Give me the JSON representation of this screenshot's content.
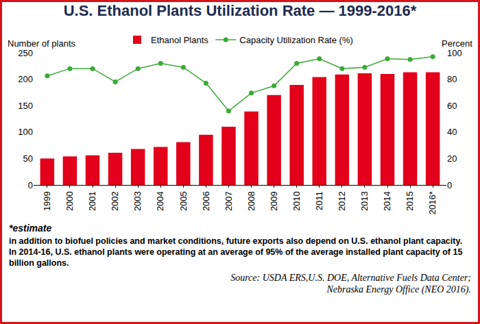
{
  "chart_data": {
    "type": "bar",
    "title": "U.S. Ethanol Plants Utilization Rate — 1999-2016*",
    "ylabel": "Number of plants",
    "y2label": "Percent",
    "categories": [
      "1999",
      "2000",
      "2001",
      "2002",
      "2003",
      "2004",
      "2005",
      "2006",
      "2007",
      "2008",
      "2009",
      "2010",
      "2011",
      "2012",
      "2013",
      "2014",
      "2015",
      "2016*"
    ],
    "series": [
      {
        "name": "Ethanol Plants",
        "type": "bar",
        "color": "#e2001a",
        "values": [
          50,
          54,
          56,
          61,
          68,
          72,
          81,
          95,
          110,
          139,
          170,
          189,
          204,
          209,
          211,
          210,
          213,
          213
        ]
      },
      {
        "name": "Capacity Utilization Rate (%)",
        "type": "line",
        "axis": "y2",
        "color": "#3aaa35",
        "marker": "circle",
        "values": [
          82.5,
          88,
          88,
          78,
          88,
          92,
          89,
          77,
          56,
          69.5,
          75,
          92,
          95.5,
          88,
          89,
          95.5,
          95,
          97
        ]
      }
    ],
    "ylim": [
      0,
      250
    ],
    "yticks": [
      0,
      50,
      100,
      150,
      200,
      250
    ],
    "y2lim": [
      0,
      100
    ],
    "y2ticks": [
      0,
      20,
      40,
      60,
      80,
      100
    ],
    "grid": false,
    "legend": "top",
    "footnote": "*estimate",
    "caption": "in addition to biofuel policies and market conditions, future exports also depend on U.S. ethanol plant capacity. In 2014-16, U.S. ethanol plants were operating at an average of 95% of the average installed plant capacity of 15 billion gallons.",
    "source": [
      "Source: USDA ERS,U.S. DOE, Alternative Fuels Data Center;",
      "Nebraska Energy Office (NEO 2016)."
    ]
  }
}
